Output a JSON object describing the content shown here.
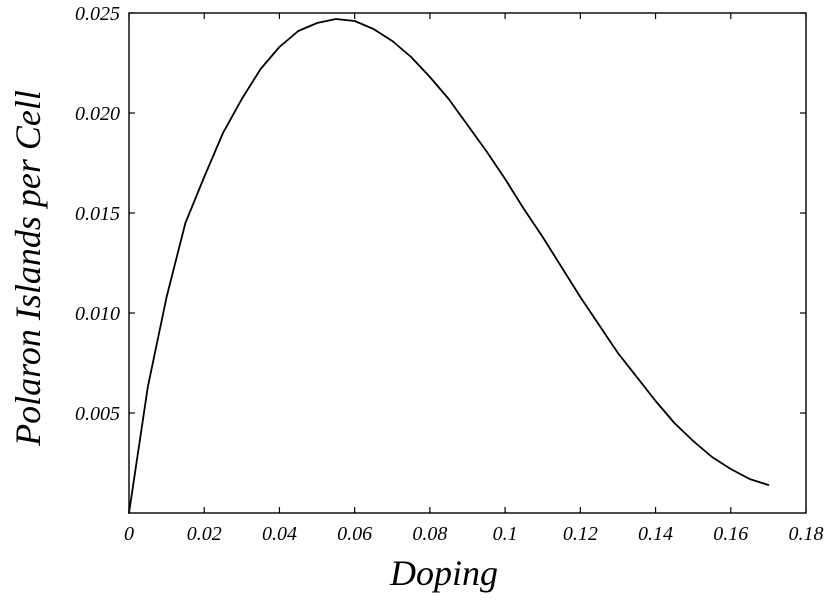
{
  "chart_data": {
    "type": "line",
    "title": "",
    "xlabel": "Doping",
    "ylabel": "Polaron Islands per Cell",
    "xlim": [
      0,
      0.18
    ],
    "ylim": [
      0,
      0.025
    ],
    "x_ticks": [
      0,
      0.02,
      0.04,
      0.06,
      0.08,
      0.1,
      0.12,
      0.14,
      0.16,
      0.18
    ],
    "x_tick_labels": [
      "0",
      "0.02",
      "0.04",
      "0.06",
      "0.08",
      "0.1",
      "0.12",
      "0.14",
      "0.16",
      "0.18"
    ],
    "y_ticks": [
      0.005,
      0.01,
      0.015,
      0.02,
      0.025
    ],
    "y_tick_labels": [
      "0.005",
      "0.010",
      "0.015",
      "0.020",
      "0.025"
    ],
    "grid": false,
    "legend": "none",
    "series": [
      {
        "color": "#000000",
        "x": [
          0,
          0.005,
          0.01,
          0.015,
          0.02,
          0.025,
          0.03,
          0.035,
          0.04,
          0.045,
          0.05,
          0.055,
          0.06,
          0.065,
          0.07,
          0.075,
          0.08,
          0.085,
          0.09,
          0.095,
          0.1,
          0.105,
          0.11,
          0.115,
          0.12,
          0.125,
          0.13,
          0.135,
          0.14,
          0.145,
          0.15,
          0.155,
          0.16,
          0.165,
          0.17
        ],
        "y": [
          0,
          0.0063,
          0.0108,
          0.0145,
          0.0168,
          0.019,
          0.0207,
          0.0222,
          0.0233,
          0.0241,
          0.0245,
          0.0247,
          0.0246,
          0.0242,
          0.0236,
          0.0228,
          0.0218,
          0.0207,
          0.0194,
          0.0181,
          0.0167,
          0.0152,
          0.0138,
          0.0123,
          0.0108,
          0.0094,
          0.008,
          0.0068,
          0.0056,
          0.0045,
          0.0036,
          0.0028,
          0.0022,
          0.0017,
          0.0014
        ]
      }
    ]
  }
}
